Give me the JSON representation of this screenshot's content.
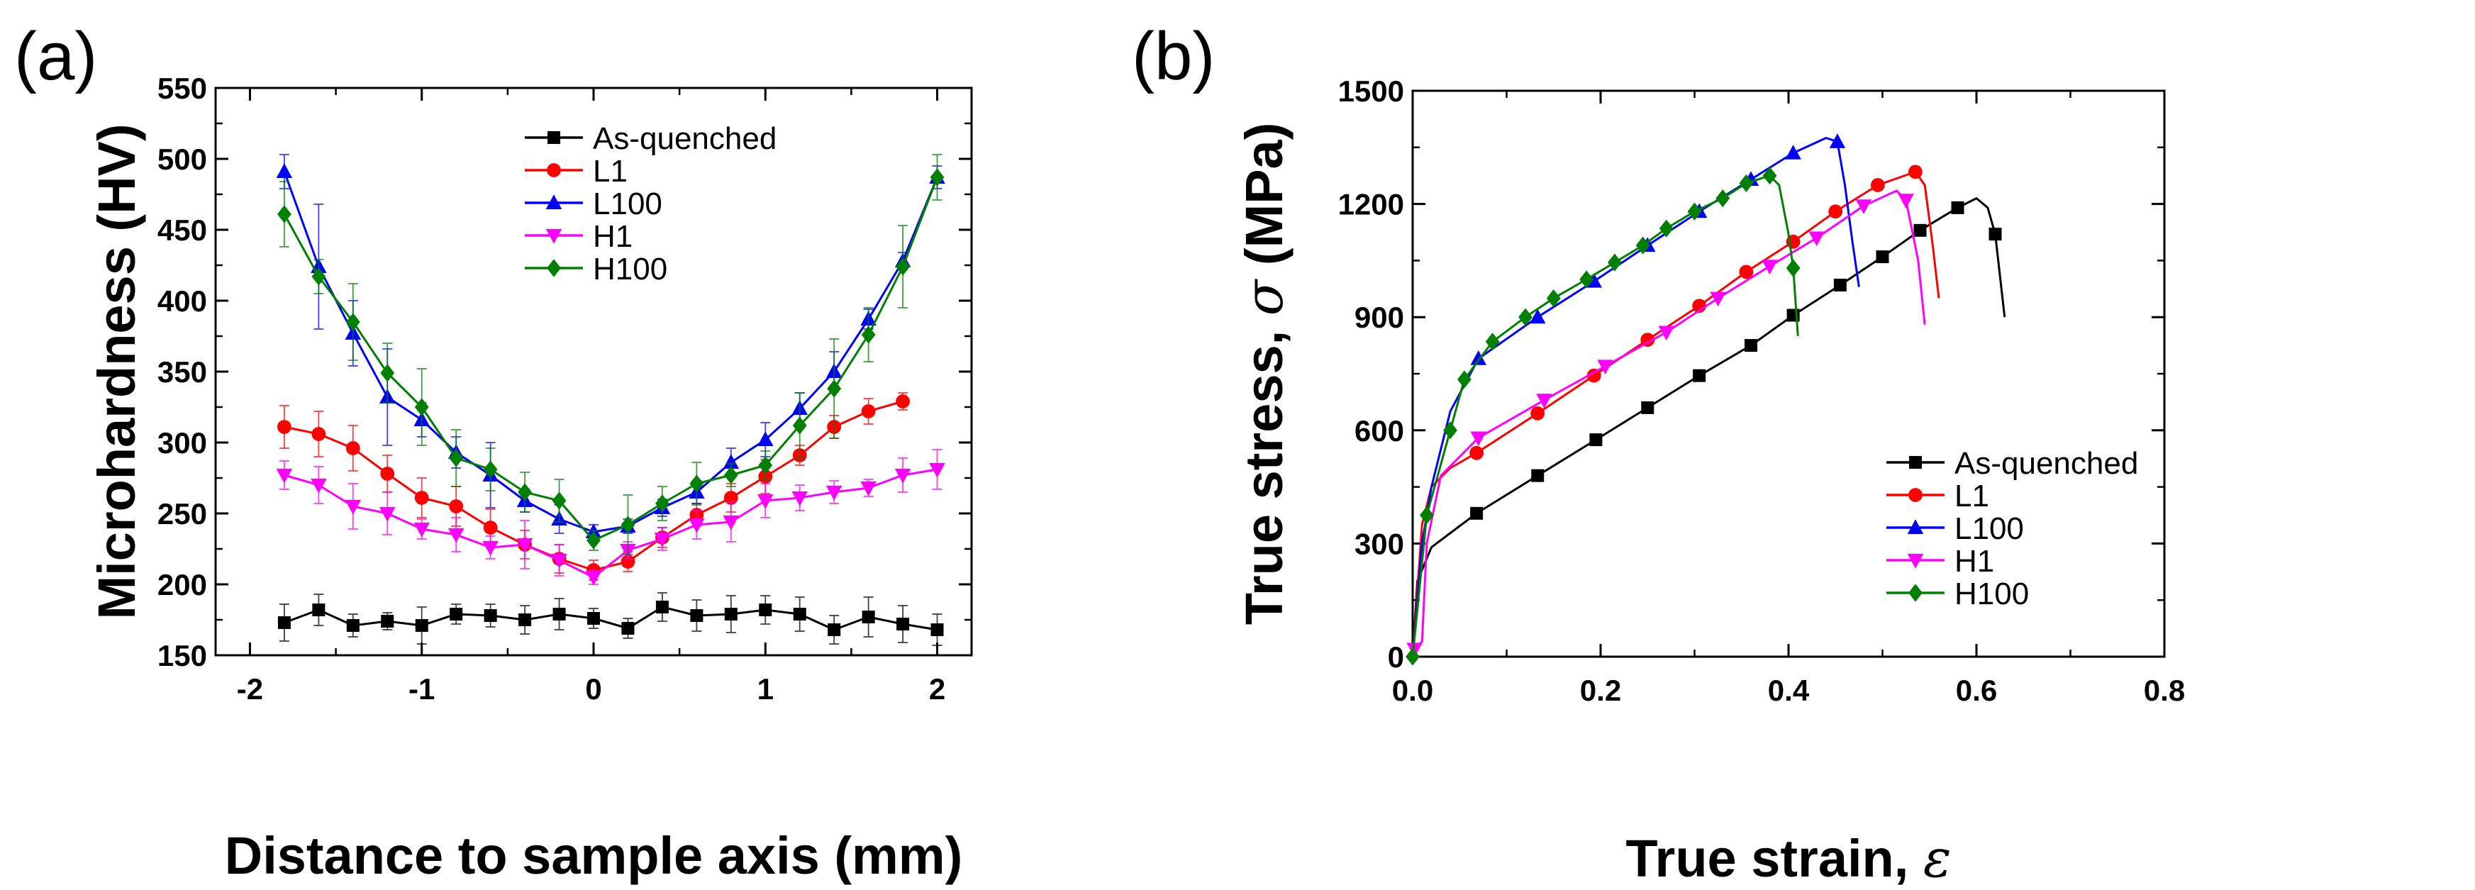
{
  "chart_data": [
    {
      "type": "line",
      "panel_label": "(a)",
      "xlabel": "Distance to sample axis (mm)",
      "ylabel": "Microhardness (HV)",
      "xlim": [
        -2.2,
        2.2
      ],
      "ylim": [
        150,
        550
      ],
      "xticks": [
        -2,
        -1,
        0,
        1,
        2
      ],
      "xtick_labels": [
        "-2",
        "-1",
        "0",
        "1",
        "2"
      ],
      "yticks": [
        150,
        200,
        250,
        300,
        350,
        400,
        450,
        500,
        550
      ],
      "ytick_labels": [
        "150",
        "200",
        "250",
        "300",
        "350",
        "400",
        "450",
        "500",
        "550"
      ],
      "legend_position": "top-center",
      "series": [
        {
          "name": "As-quenched",
          "color": "#000000",
          "marker": "square",
          "x": [
            -1.8,
            -1.6,
            -1.4,
            -1.2,
            -1.0,
            -0.8,
            -0.6,
            -0.4,
            -0.2,
            0,
            0.2,
            0.4,
            0.6,
            0.8,
            1.0,
            1.2,
            1.4,
            1.6,
            1.8,
            2.0
          ],
          "y": [
            173,
            182,
            171,
            174,
            171,
            179,
            178,
            175,
            179,
            176,
            169,
            184,
            178,
            179,
            182,
            179,
            168,
            177,
            172,
            168
          ],
          "err": [
            13,
            11,
            8,
            6,
            13,
            7,
            8,
            10,
            11,
            7,
            7,
            10,
            11,
            13,
            10,
            12,
            10,
            14,
            13,
            11
          ]
        },
        {
          "name": "L1",
          "color": "#ff0000",
          "marker": "circle",
          "x": [
            -1.8,
            -1.6,
            -1.4,
            -1.2,
            -1.0,
            -0.8,
            -0.6,
            -0.4,
            -0.2,
            0,
            0.2,
            0.4,
            0.6,
            0.8,
            1.0,
            1.2,
            1.4,
            1.6,
            1.8
          ],
          "y": [
            311,
            306,
            296,
            278,
            261,
            255,
            240,
            228,
            218,
            210,
            216,
            233,
            249,
            261,
            276,
            291,
            311,
            322,
            329
          ],
          "err": [
            15,
            16,
            16,
            13,
            14,
            14,
            13,
            10,
            10,
            7,
            7,
            7,
            8,
            10,
            12,
            7,
            8,
            9,
            6
          ]
        },
        {
          "name": "L100",
          "color": "#0000ff",
          "marker": "triangle-up",
          "x": [
            -1.8,
            -1.6,
            -1.4,
            -1.2,
            -1.0,
            -0.8,
            -0.6,
            -0.4,
            -0.2,
            0,
            0.2,
            0.4,
            0.6,
            0.8,
            1.0,
            1.2,
            1.4,
            1.6,
            1.8,
            2.0
          ],
          "y": [
            491,
            424,
            377,
            332,
            316,
            293,
            277,
            259,
            246,
            237,
            241,
            254,
            265,
            286,
            302,
            324,
            350,
            387,
            428,
            487
          ],
          "err": [
            12,
            44,
            23,
            34,
            12,
            11,
            23,
            8,
            10,
            5,
            5,
            6,
            8,
            10,
            12,
            11,
            14,
            7,
            6,
            8
          ]
        },
        {
          "name": "H1",
          "color": "#ff00ff",
          "marker": "triangle-down",
          "x": [
            -1.8,
            -1.6,
            -1.4,
            -1.2,
            -1.0,
            -0.8,
            -0.6,
            -0.4,
            -0.2,
            0,
            0.2,
            0.4,
            0.6,
            0.8,
            1.0,
            1.2,
            1.4,
            1.6,
            1.8,
            2.0
          ],
          "y": [
            277,
            270,
            255,
            250,
            239,
            235,
            226,
            228,
            217,
            205,
            224,
            232,
            242,
            244,
            259,
            261,
            265,
            268,
            277,
            281
          ],
          "err": [
            10,
            13,
            16,
            15,
            7,
            12,
            8,
            17,
            11,
            5,
            6,
            8,
            10,
            14,
            12,
            9,
            8,
            6,
            12,
            14
          ]
        },
        {
          "name": "H100",
          "color": "#008000",
          "marker": "diamond",
          "x": [
            -1.8,
            -1.6,
            -1.4,
            -1.2,
            -1.0,
            -0.8,
            -0.6,
            -0.4,
            -0.2,
            0,
            0.2,
            0.4,
            0.6,
            0.8,
            1.0,
            1.2,
            1.4,
            1.6,
            1.8,
            2.0
          ],
          "y": [
            461,
            417,
            385,
            349,
            325,
            289,
            281,
            265,
            259,
            231,
            242,
            257,
            271,
            277,
            284,
            312,
            338,
            376,
            424,
            487
          ],
          "err": [
            23,
            12,
            27,
            21,
            27,
            20,
            15,
            14,
            15,
            7,
            21,
            12,
            15,
            8,
            10,
            23,
            35,
            19,
            29,
            16
          ]
        }
      ]
    },
    {
      "type": "line",
      "panel_label": "(b)",
      "xlabel": "True strain, ",
      "xlabel_symbol": "ε",
      "ylabel": "True stress, ",
      "ylabel_symbol": "σ",
      "ylabel_unit": " (MPa)",
      "xlim": [
        0,
        0.8
      ],
      "ylim": [
        0,
        1500
      ],
      "xticks": [
        0,
        0.2,
        0.4,
        0.6,
        0.8
      ],
      "xtick_labels": [
        "0.0",
        "0.2",
        "0.4",
        "0.6",
        "0.8"
      ],
      "yticks": [
        0,
        300,
        600,
        900,
        1200,
        1500
      ],
      "ytick_labels": [
        "0",
        "300",
        "600",
        "900",
        "1200",
        "1500"
      ],
      "legend_position": "bottom-right",
      "series": [
        {
          "name": "As-quenched",
          "color": "#000000",
          "marker": "square",
          "x": [
            0,
            0.005,
            0.02,
            0.068,
            0.133,
            0.195,
            0.25,
            0.305,
            0.36,
            0.405,
            0.455,
            0.5,
            0.54,
            0.58,
            0.6,
            0.612,
            0.62,
            0.63
          ],
          "y": [
            0,
            200,
            290,
            380,
            480,
            575,
            660,
            745,
            825,
            905,
            985,
            1060,
            1130,
            1190,
            1215,
            1190,
            1120,
            900
          ],
          "markers": [
            0,
            0,
            0,
            1,
            1,
            1,
            1,
            1,
            1,
            1,
            1,
            1,
            1,
            1,
            0,
            0,
            1,
            0
          ]
        },
        {
          "name": "L1",
          "color": "#ff0000",
          "marker": "circle",
          "x": [
            0,
            0.01,
            0.02,
            0.04,
            0.068,
            0.133,
            0.193,
            0.25,
            0.305,
            0.355,
            0.405,
            0.45,
            0.495,
            0.535,
            0.545,
            0.553,
            0.56
          ],
          "y": [
            0,
            350,
            450,
            500,
            540,
            645,
            745,
            840,
            930,
            1020,
            1100,
            1180,
            1250,
            1285,
            1250,
            1100,
            950
          ],
          "markers": [
            0,
            0,
            0,
            0,
            1,
            1,
            1,
            1,
            1,
            1,
            1,
            1,
            1,
            1,
            0,
            0,
            0
          ]
        },
        {
          "name": "L100",
          "color": "#0000ff",
          "marker": "triangle-up",
          "x": [
            0,
            0.01,
            0.02,
            0.04,
            0.07,
            0.133,
            0.193,
            0.25,
            0.305,
            0.36,
            0.405,
            0.44,
            0.452,
            0.46,
            0.468,
            0.475
          ],
          "y": [
            0,
            300,
            450,
            650,
            790,
            900,
            995,
            1090,
            1180,
            1265,
            1335,
            1375,
            1365,
            1250,
            1100,
            980
          ],
          "markers": [
            0,
            0,
            0,
            0,
            1,
            1,
            1,
            1,
            1,
            1,
            1,
            0,
            1,
            0,
            0,
            0
          ]
        },
        {
          "name": "H1",
          "color": "#ff00ff",
          "marker": "triangle-down",
          "x": [
            0.002,
            0.01,
            0.015,
            0.03,
            0.07,
            0.14,
            0.205,
            0.27,
            0.325,
            0.38,
            0.43,
            0.48,
            0.515,
            0.525,
            0.538,
            0.545
          ],
          "y": [
            20,
            40,
            300,
            480,
            580,
            680,
            770,
            860,
            950,
            1035,
            1110,
            1195,
            1235,
            1210,
            1050,
            880
          ],
          "markers": [
            1,
            0,
            0,
            0,
            1,
            1,
            1,
            1,
            1,
            1,
            1,
            1,
            0,
            1,
            0,
            0
          ]
        },
        {
          "name": "H100",
          "color": "#008000",
          "marker": "diamond",
          "x": [
            0,
            0.015,
            0.04,
            0.055,
            0.085,
            0.12,
            0.15,
            0.185,
            0.215,
            0.245,
            0.27,
            0.3,
            0.33,
            0.355,
            0.38,
            0.39,
            0.4,
            0.405,
            0.41
          ],
          "y": [
            0,
            375,
            600,
            735,
            835,
            900,
            950,
            1000,
            1045,
            1090,
            1135,
            1180,
            1215,
            1255,
            1275,
            1250,
            1120,
            1030,
            850
          ],
          "markers": [
            1,
            1,
            1,
            1,
            1,
            1,
            1,
            1,
            1,
            1,
            1,
            1,
            1,
            1,
            1,
            0,
            0,
            1,
            0
          ]
        }
      ]
    }
  ]
}
